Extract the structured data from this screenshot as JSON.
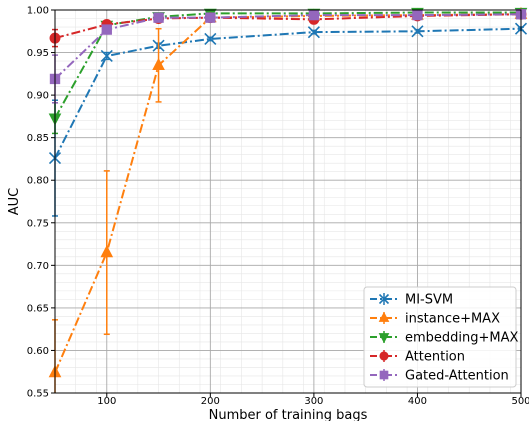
{
  "chart_data": {
    "type": "line",
    "xlabel": "Number of training bags",
    "ylabel": "AUC",
    "xlim": [
      50,
      500
    ],
    "ylim": [
      0.55,
      1.0
    ],
    "xticks": [
      "100",
      "200",
      "300",
      "400",
      "500"
    ],
    "xtick_values": [
      100,
      200,
      300,
      400,
      500
    ],
    "yticks": [
      "0.55",
      "0.60",
      "0.65",
      "0.70",
      "0.75",
      "0.80",
      "0.85",
      "0.90",
      "0.95",
      "1.00"
    ],
    "ytick_values": [
      0.55,
      0.6,
      0.65,
      0.7,
      0.75,
      0.8,
      0.85,
      0.9,
      0.95,
      1.0
    ],
    "grid": true,
    "minor_grid": true,
    "legend_position": "lower-right",
    "x": [
      50,
      100,
      150,
      200,
      300,
      400,
      500
    ],
    "series": [
      {
        "name": "MI-SVM",
        "color": "#1f77b4",
        "marker": "x",
        "values": [
          0.826,
          0.946,
          0.958,
          0.966,
          0.974,
          0.975,
          0.978
        ],
        "errors": [
          0.068,
          0.004,
          0.003,
          0.002,
          0.002,
          0.002,
          0.002
        ]
      },
      {
        "name": "instance+MAX",
        "color": "#ff7f0e",
        "marker": "triangle-up",
        "values": [
          0.574,
          0.715,
          0.935,
          0.991,
          0.993,
          0.994,
          0.995
        ],
        "errors": [
          0.062,
          0.096,
          0.043,
          0.003,
          0.002,
          0.002,
          0.002
        ]
      },
      {
        "name": "embedding+MAX",
        "color": "#2ca02c",
        "marker": "triangle-down",
        "values": [
          0.873,
          0.982,
          0.992,
          0.996,
          0.996,
          0.997,
          0.997
        ],
        "errors": [
          0.018,
          0.005,
          0.003,
          0.002,
          0.002,
          0.001,
          0.001
        ]
      },
      {
        "name": "Attention",
        "color": "#d62728",
        "marker": "circle",
        "values": [
          0.967,
          0.983,
          0.99,
          0.991,
          0.989,
          0.993,
          0.995
        ],
        "errors": [
          0.01,
          0.004,
          0.003,
          0.002,
          0.002,
          0.002,
          0.002
        ]
      },
      {
        "name": "Gated-Attention",
        "color": "#9467bd",
        "marker": "square",
        "values": [
          0.919,
          0.977,
          0.991,
          0.991,
          0.994,
          0.994,
          0.995
        ],
        "errors": [
          0.028,
          0.005,
          0.003,
          0.002,
          0.002,
          0.002,
          0.002
        ]
      }
    ]
  }
}
